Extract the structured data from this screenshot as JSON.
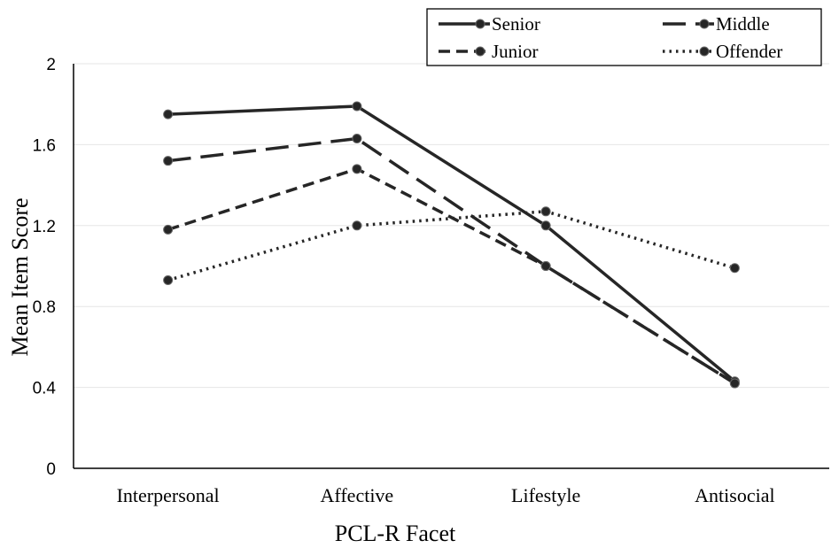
{
  "chart_data": {
    "type": "line",
    "title": "",
    "xlabel": "PCL-R Facet",
    "ylabel": "Mean Item Score",
    "categories": [
      "Interpersonal",
      "Affective",
      "Lifestyle",
      "Antisocial"
    ],
    "ylim": [
      0,
      2
    ],
    "yticks": [
      "0",
      "0.4",
      "0.8",
      "1.2",
      "1.6",
      "2"
    ],
    "grid": true,
    "legend_position": "top-right",
    "series": [
      {
        "name": "Senior",
        "values": [
          1.75,
          1.79,
          1.2,
          0.43
        ],
        "dash": "solid"
      },
      {
        "name": "Middle",
        "values": [
          1.52,
          1.63,
          1.0,
          0.42
        ],
        "dash": "long-dash"
      },
      {
        "name": "Junior",
        "values": [
          1.18,
          1.48,
          1.0,
          0.42
        ],
        "dash": "dash"
      },
      {
        "name": "Offender",
        "values": [
          0.93,
          1.2,
          1.27,
          0.99
        ],
        "dash": "dot"
      }
    ],
    "line_color": "#262626",
    "gridline_color": "#e6e6e6"
  }
}
